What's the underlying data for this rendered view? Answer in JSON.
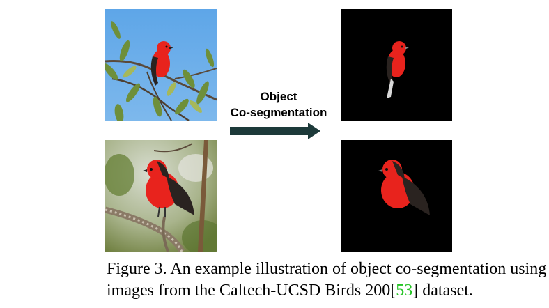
{
  "figure": {
    "process_label_line1": "Object",
    "process_label_line2": "Co-segmentation",
    "caption": {
      "line1": "Figure 3. An example illustration of object co-segmentation using",
      "line2_before": "images from the Caltech-UCSD Birds 200[",
      "citation": "53",
      "line2_after": "] dataset."
    }
  },
  "colors": {
    "sky": "#5fa6e6",
    "arrow": "#1d3a3a",
    "citation": "#22c322",
    "bird_red": "#e8231d",
    "bird_dark": "#2a2320"
  }
}
